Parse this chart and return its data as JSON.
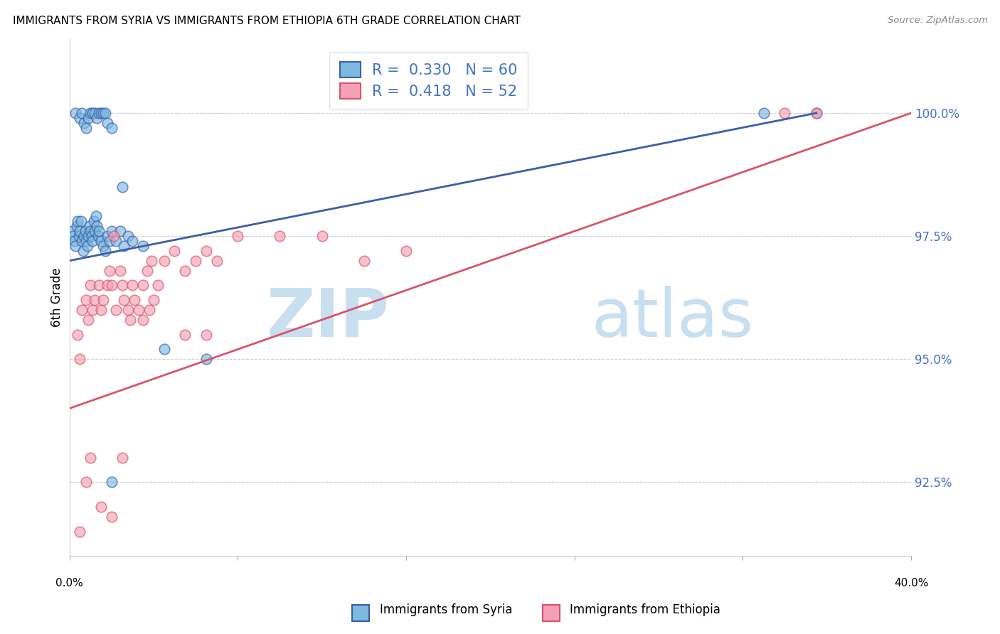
{
  "title": "IMMIGRANTS FROM SYRIA VS IMMIGRANTS FROM ETHIOPIA 6TH GRADE CORRELATION CHART",
  "source": "Source: ZipAtlas.com",
  "ylabel": "6th Grade",
  "xlim": [
    0.0,
    40.0
  ],
  "ylim": [
    91.0,
    101.5
  ],
  "yticks": [
    92.5,
    95.0,
    97.5,
    100.0
  ],
  "ytick_labels": [
    "92.5%",
    "95.0%",
    "97.5%",
    "100.0%"
  ],
  "xticks": [
    0.0,
    8.0,
    16.0,
    24.0,
    32.0,
    40.0
  ],
  "legend_label_syria": "Immigrants from Syria",
  "legend_label_ethiopia": "Immigrants from Ethiopia",
  "color_syria": "#7db9e0",
  "color_ethiopia": "#f4a0b5",
  "color_trend_syria": "#3a5fa8",
  "color_trend_ethiopia": "#d9536a",
  "color_text_blue": "#4472c4",
  "watermark_zip": "ZIP",
  "watermark_atlas": "atlas",
  "watermark_color_zip": "#c8dff0",
  "watermark_color_atlas": "#c8dff0",
  "syria_x": [
    0.15,
    0.2,
    0.25,
    0.3,
    0.35,
    0.4,
    0.45,
    0.5,
    0.55,
    0.6,
    0.65,
    0.7,
    0.75,
    0.8,
    0.85,
    0.9,
    0.95,
    1.0,
    1.05,
    1.1,
    1.15,
    1.2,
    1.25,
    1.3,
    1.35,
    1.4,
    1.5,
    1.6,
    1.7,
    1.8,
    1.9,
    2.0,
    2.2,
    2.4,
    2.6,
    2.8,
    3.0,
    3.5,
    4.5,
    6.5,
    0.3,
    0.5,
    0.6,
    0.7,
    0.8,
    0.9,
    1.0,
    1.1,
    1.2,
    1.3,
    1.4,
    1.5,
    1.6,
    1.7,
    1.8,
    2.0,
    2.5,
    33.0,
    35.5,
    2.0
  ],
  "syria_y": [
    97.6,
    97.5,
    97.4,
    97.3,
    97.7,
    97.8,
    97.5,
    97.6,
    97.8,
    97.4,
    97.2,
    97.5,
    97.6,
    97.4,
    97.3,
    97.5,
    97.7,
    97.6,
    97.5,
    97.4,
    97.8,
    97.6,
    97.9,
    97.7,
    97.5,
    97.6,
    97.4,
    97.3,
    97.2,
    97.5,
    97.4,
    97.6,
    97.4,
    97.6,
    97.3,
    97.5,
    97.4,
    97.3,
    95.2,
    95.0,
    100.0,
    99.9,
    100.0,
    99.8,
    99.7,
    99.9,
    100.0,
    100.0,
    100.0,
    99.9,
    100.0,
    100.0,
    100.0,
    100.0,
    99.8,
    99.7,
    98.5,
    100.0,
    100.0,
    92.5
  ],
  "ethiopia_x": [
    0.4,
    0.5,
    0.6,
    0.8,
    0.9,
    1.0,
    1.1,
    1.2,
    1.4,
    1.5,
    1.6,
    1.8,
    1.9,
    2.0,
    2.1,
    2.2,
    2.4,
    2.5,
    2.6,
    2.8,
    2.9,
    3.0,
    3.1,
    3.3,
    3.5,
    3.7,
    3.9,
    4.0,
    4.2,
    4.5,
    5.0,
    5.5,
    6.0,
    6.5,
    7.0,
    8.0,
    10.0,
    12.0,
    14.0,
    16.0,
    3.5,
    3.8,
    5.5,
    6.5,
    34.0,
    35.5,
    0.5,
    0.8,
    1.0,
    1.5,
    2.0,
    2.5
  ],
  "ethiopia_y": [
    95.5,
    95.0,
    96.0,
    96.2,
    95.8,
    96.5,
    96.0,
    96.2,
    96.5,
    96.0,
    96.2,
    96.5,
    96.8,
    96.5,
    97.5,
    96.0,
    96.8,
    96.5,
    96.2,
    96.0,
    95.8,
    96.5,
    96.2,
    96.0,
    96.5,
    96.8,
    97.0,
    96.2,
    96.5,
    97.0,
    97.2,
    96.8,
    97.0,
    97.2,
    97.0,
    97.5,
    97.5,
    97.5,
    97.0,
    97.2,
    95.8,
    96.0,
    95.5,
    95.5,
    100.0,
    100.0,
    91.5,
    92.5,
    93.0,
    92.0,
    91.8,
    93.0
  ],
  "trend_syria_x0": 0.0,
  "trend_syria_y0": 97.0,
  "trend_syria_x1": 35.5,
  "trend_syria_y1": 100.0,
  "trend_eth_x0": 0.0,
  "trend_eth_y0": 94.0,
  "trend_eth_x1": 40.0,
  "trend_eth_y1": 100.0
}
